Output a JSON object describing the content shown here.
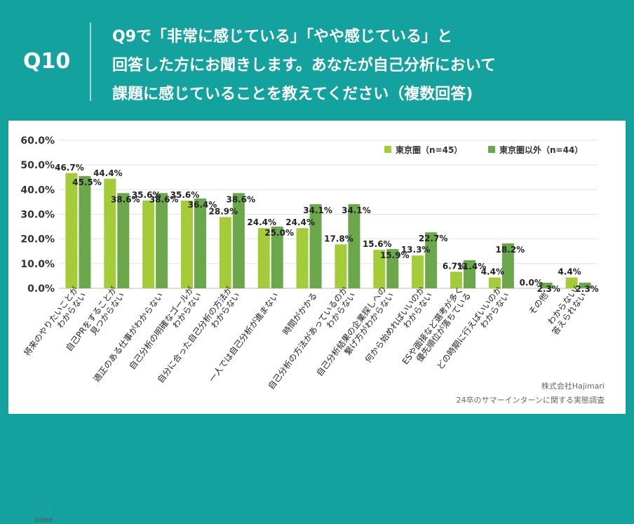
{
  "header": {
    "question_number": "Q10",
    "question_lines": [
      "Q9で「非常に感じている」「やや感じている」と",
      "回答した方にお聞きします。あなたが自己分析において",
      "課題に感じていることを教えてください（複数回答)"
    ]
  },
  "colors": {
    "teal": "#13a29d",
    "series1": "#a4cc38",
    "series2": "#6ba74b"
  },
  "chart_data": {
    "type": "bar",
    "categories": [
      "将来のやりたいことが\nわからない",
      "自己PRをすることが\n見つからない",
      "適正のある仕事がわからない",
      "自己分析の明確なゴールが\nわからない",
      "自分に合った自己分析の方法が\nわからない",
      "一人では自己分析が進まない",
      "時間がかかる",
      "自己分析の方法があっているのか\nわからない",
      "自己分析結果の企業探しへの\n繋げ方がわからない",
      "何から始めればいいのか\nわからない",
      "ESや面接など選考が多く\n優先順位が落ちている",
      "どの時期に行えばいいのか\nわからない",
      "その他",
      "わからない/\n答えられない"
    ],
    "series": [
      {
        "name": "東京圏（n=45）",
        "values": [
          46.7,
          44.4,
          35.6,
          35.6,
          28.9,
          24.4,
          24.4,
          17.8,
          15.6,
          13.3,
          6.7,
          4.4,
          0.0,
          4.4
        ],
        "labels": [
          "46.7%",
          "44.4%",
          "35.6%",
          "35.6%",
          "28.9%",
          "24.4%",
          "24.4%",
          "17.8%",
          "15.6%",
          "13.3%",
          "6.7%",
          "4.4%",
          "0.0%",
          "4.4%"
        ]
      },
      {
        "name": "東京圏以外（n=44）",
        "values": [
          45.5,
          38.6,
          38.6,
          36.4,
          38.6,
          25.0,
          34.1,
          34.1,
          15.9,
          22.7,
          11.4,
          18.2,
          2.3,
          2.3
        ],
        "labels": [
          "45.5%",
          "38.6%",
          "38.6%",
          "36.4%",
          "38.6%",
          "25.0%",
          "34.1%",
          "34.1%",
          "15.9%",
          "22.7%",
          "11.4%",
          "18.2%",
          "2.3%",
          "2.3%"
        ]
      }
    ],
    "ylim": [
      0,
      60
    ],
    "yticks": [
      "0.0%",
      "10.0%",
      "20.0%",
      "30.0%",
      "40.0%",
      "50.0%",
      "60.0%"
    ],
    "grid": true,
    "legend": "top-right"
  },
  "footer": {
    "logo": "int",
    "logo_sub": "intee",
    "company": "株式会社Hajimari",
    "survey": "24卒のサマーインターンに関する実態調査"
  }
}
